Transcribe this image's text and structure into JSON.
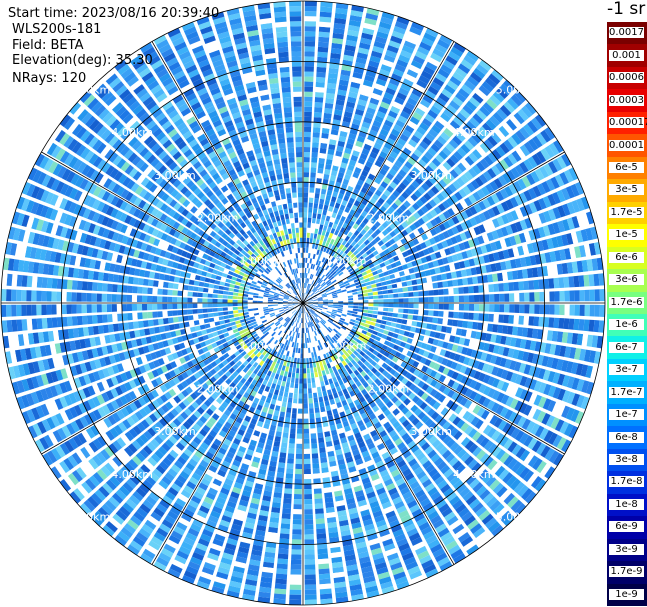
{
  "header": {
    "start_time": "Start time: 2023/08/16 20:39:40",
    "instrument": "WLS200s-181",
    "field": "Field: BETA",
    "elevation": "Elevation(deg): 35.30",
    "nrays": "NRays: 120"
  },
  "colorbar": {
    "unit_label": "-1 sr",
    "labels": [
      "0.0017",
      "0.001",
      "0.0006",
      "0.0003",
      "0.00017",
      "0.0001",
      "6e-5",
      "3e-5",
      "1.7e-5",
      "1e-5",
      "6e-6",
      "3e-6",
      "1.7e-6",
      "1e-6",
      "6e-7",
      "3e-7",
      "1.7e-7",
      "1e-7",
      "6e-8",
      "3e-8",
      "1.7e-8",
      "1e-8",
      "6e-9",
      "3e-9",
      "1.7e-9",
      "1e-9"
    ],
    "colors": [
      "#7a0000",
      "#a00000",
      "#c80000",
      "#e80000",
      "#ff2000",
      "#ff5500",
      "#ff8000",
      "#ffaa00",
      "#ffd000",
      "#ffff00",
      "#d8ff20",
      "#a8ff50",
      "#78ff80",
      "#40ffb8",
      "#10f0e8",
      "#00d0ff",
      "#00b0ff",
      "#0090ff",
      "#0070ff",
      "#0050f0",
      "#0030e0",
      "#0010c8",
      "#0000a8",
      "#000088",
      "#000068",
      "#000048"
    ]
  },
  "chart_data": {
    "type": "heatmap",
    "projection": "polar PPI",
    "n_rays": 120,
    "range_ring_labels": [
      "1.00km",
      "2.00km",
      "3.00km",
      "4.00km",
      "5.00km"
    ],
    "range_rings_km": [
      1,
      2,
      3,
      4,
      5
    ],
    "max_range_km": 5.0,
    "azimuth_spokes_deg": [
      0,
      30,
      60,
      90,
      120,
      150,
      180,
      210,
      240,
      270,
      300,
      330
    ],
    "grid": true,
    "field": "BETA",
    "colorscale": "log, 1e-9 to 0.0017 sr-1"
  }
}
